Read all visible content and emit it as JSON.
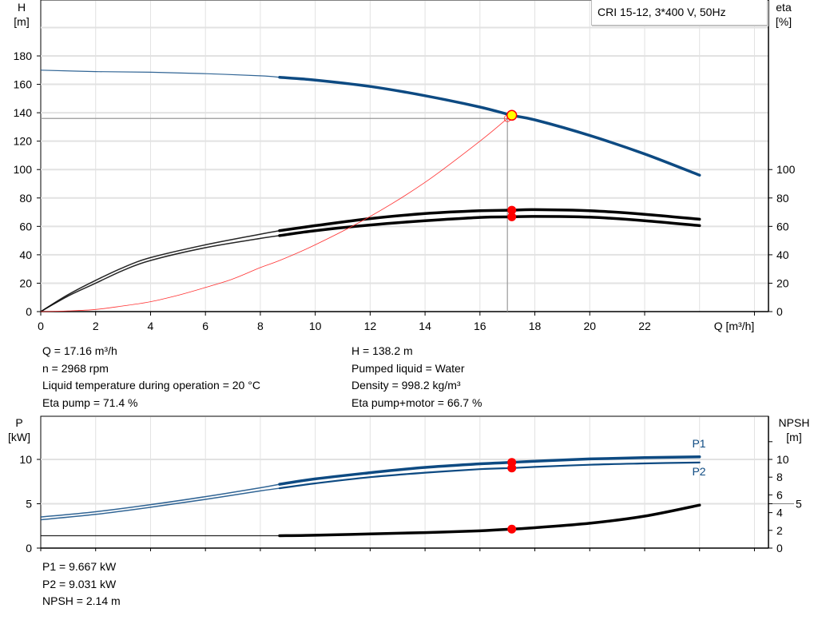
{
  "chart_data": [
    {
      "type": "line",
      "title": "CRI 15-12, 3*400 V, 50Hz",
      "xlabel": "Q [m³/h]",
      "ylabel_left": [
        "H",
        "[m]"
      ],
      "ylabel_right": [
        "eta",
        "[%]"
      ],
      "xlim": [
        0,
        26.5
      ],
      "ylim_left": [
        0,
        219
      ],
      "ylim_right": [
        0,
        219
      ],
      "x_ticks": [
        0,
        2,
        4,
        6,
        8,
        10,
        12,
        14,
        16,
        18,
        20,
        22
      ],
      "y_ticks_left": [
        0,
        20,
        40,
        60,
        80,
        100,
        120,
        140,
        160,
        180
      ],
      "y_ticks_right": [
        0,
        20,
        40,
        60,
        80,
        100
      ],
      "grid": true,
      "colors": {
        "head": "#0d4a82",
        "eta": "#000000",
        "system": "#ff3030",
        "point": "#ff0000",
        "duty_fill": "#ffff00",
        "grid": "#e2e2e2"
      },
      "series": [
        {
          "key": "head",
          "axis": "left",
          "x": [
            0,
            2,
            4,
            6,
            8,
            8.7,
            10,
            12,
            14,
            16,
            17.16,
            18,
            20,
            22,
            24
          ],
          "y": [
            170,
            169,
            168.5,
            167.5,
            166,
            165,
            163,
            158.5,
            152,
            144,
            138.2,
            135,
            124,
            111,
            96
          ],
          "thick_from": 8.7
        },
        {
          "key": "eta-pump",
          "axis": "right",
          "x": [
            0,
            1,
            2,
            3,
            4,
            6,
            8,
            8.7,
            10,
            12,
            14,
            16,
            17.16,
            18,
            20,
            22,
            24
          ],
          "y": [
            0,
            12,
            22,
            31,
            38,
            47,
            54.5,
            57,
            60.5,
            65.5,
            69,
            71,
            71.4,
            71.8,
            71,
            68.5,
            65
          ],
          "thick_from": 8.7
        },
        {
          "key": "eta-pump-motor",
          "axis": "right",
          "x": [
            0,
            1,
            2,
            3,
            4,
            6,
            8,
            8.7,
            10,
            12,
            14,
            16,
            17.16,
            18,
            20,
            22,
            24
          ],
          "y": [
            0,
            11,
            20,
            29,
            36,
            45,
            51.5,
            53.5,
            57,
            61,
            64,
            66.3,
            66.7,
            67,
            66.5,
            64,
            60.5
          ],
          "thick_from": 8.7
        },
        {
          "key": "system-curve",
          "axis": "left",
          "x": [
            0,
            1,
            2,
            3,
            4,
            5,
            6,
            7,
            8,
            8.7,
            10,
            12,
            14,
            16,
            17
          ],
          "y": [
            0,
            0.5,
            1.5,
            4,
            7,
            11.5,
            17,
            23,
            31,
            36,
            47,
            67,
            91,
            120,
            136
          ]
        }
      ],
      "duty_point": {
        "Q": 17.16,
        "H": 138.2,
        "eta_pump": 71.4,
        "eta_pump_motor": 66.7
      },
      "system_point": {
        "Q": 17.0,
        "H": 136
      }
    },
    {
      "type": "line",
      "xlabel": "",
      "ylabel_left": [
        "P",
        "[kW]"
      ],
      "ylabel_right": [
        "NPSH",
        "[m]"
      ],
      "xlim": [
        0,
        26.5
      ],
      "ylim_left": [
        0,
        14.9
      ],
      "ylim_right": [
        0,
        14.9
      ],
      "y_ticks_left": [
        0,
        5,
        10
      ],
      "y_ticks_right": [
        0,
        2,
        4,
        5,
        6,
        8,
        10,
        12
      ],
      "y_tick_labels_right": [
        "0",
        "2",
        "4",
        "5",
        "6",
        "8",
        "10",
        ""
      ],
      "grid": true,
      "series": [
        {
          "name": "P1",
          "key": "P1",
          "x": [
            0,
            2,
            4,
            6,
            8,
            8.7,
            10,
            12,
            14,
            16,
            17.16,
            18,
            20,
            22,
            24
          ],
          "y": [
            3.5,
            4.1,
            4.9,
            5.8,
            6.8,
            7.2,
            7.8,
            8.5,
            9.1,
            9.5,
            9.667,
            9.8,
            10.05,
            10.2,
            10.3
          ],
          "thick_from": 8.7
        },
        {
          "name": "P2",
          "key": "P2",
          "x": [
            0,
            2,
            4,
            6,
            8,
            8.7,
            10,
            12,
            14,
            16,
            17.16,
            18,
            20,
            22,
            24
          ],
          "y": [
            3.2,
            3.8,
            4.6,
            5.5,
            6.45,
            6.75,
            7.3,
            8.0,
            8.5,
            8.9,
            9.031,
            9.15,
            9.4,
            9.55,
            9.65
          ],
          "thick_from": 8.7
        },
        {
          "key": "NPSH",
          "x": [
            0,
            4,
            8.7,
            10,
            12,
            14,
            16,
            17.16,
            18,
            20,
            22,
            24
          ],
          "y": [
            1.4,
            1.4,
            1.4,
            1.45,
            1.6,
            1.75,
            1.95,
            2.14,
            2.3,
            2.8,
            3.6,
            4.85
          ],
          "thick_from": 8.7
        }
      ],
      "duty_point": {
        "Q": 17.16,
        "P1": 9.667,
        "P2": 9.031,
        "NPSH": 2.14
      }
    }
  ],
  "info_top_left": [
    "Q = 17.16 m³/h",
    "n = 2968 rpm",
    "Liquid temperature during operation = 20 °C",
    "Eta pump = 71.4 %"
  ],
  "info_top_right": [
    "H = 138.2 m",
    "Pumped liquid = Water",
    "Density = 998.2 kg/m³",
    "Eta pump+motor = 66.7 %"
  ],
  "info_bottom": [
    "P1 = 9.667 kW",
    "P2 = 9.031 kW",
    "NPSH = 2.14 m"
  ]
}
